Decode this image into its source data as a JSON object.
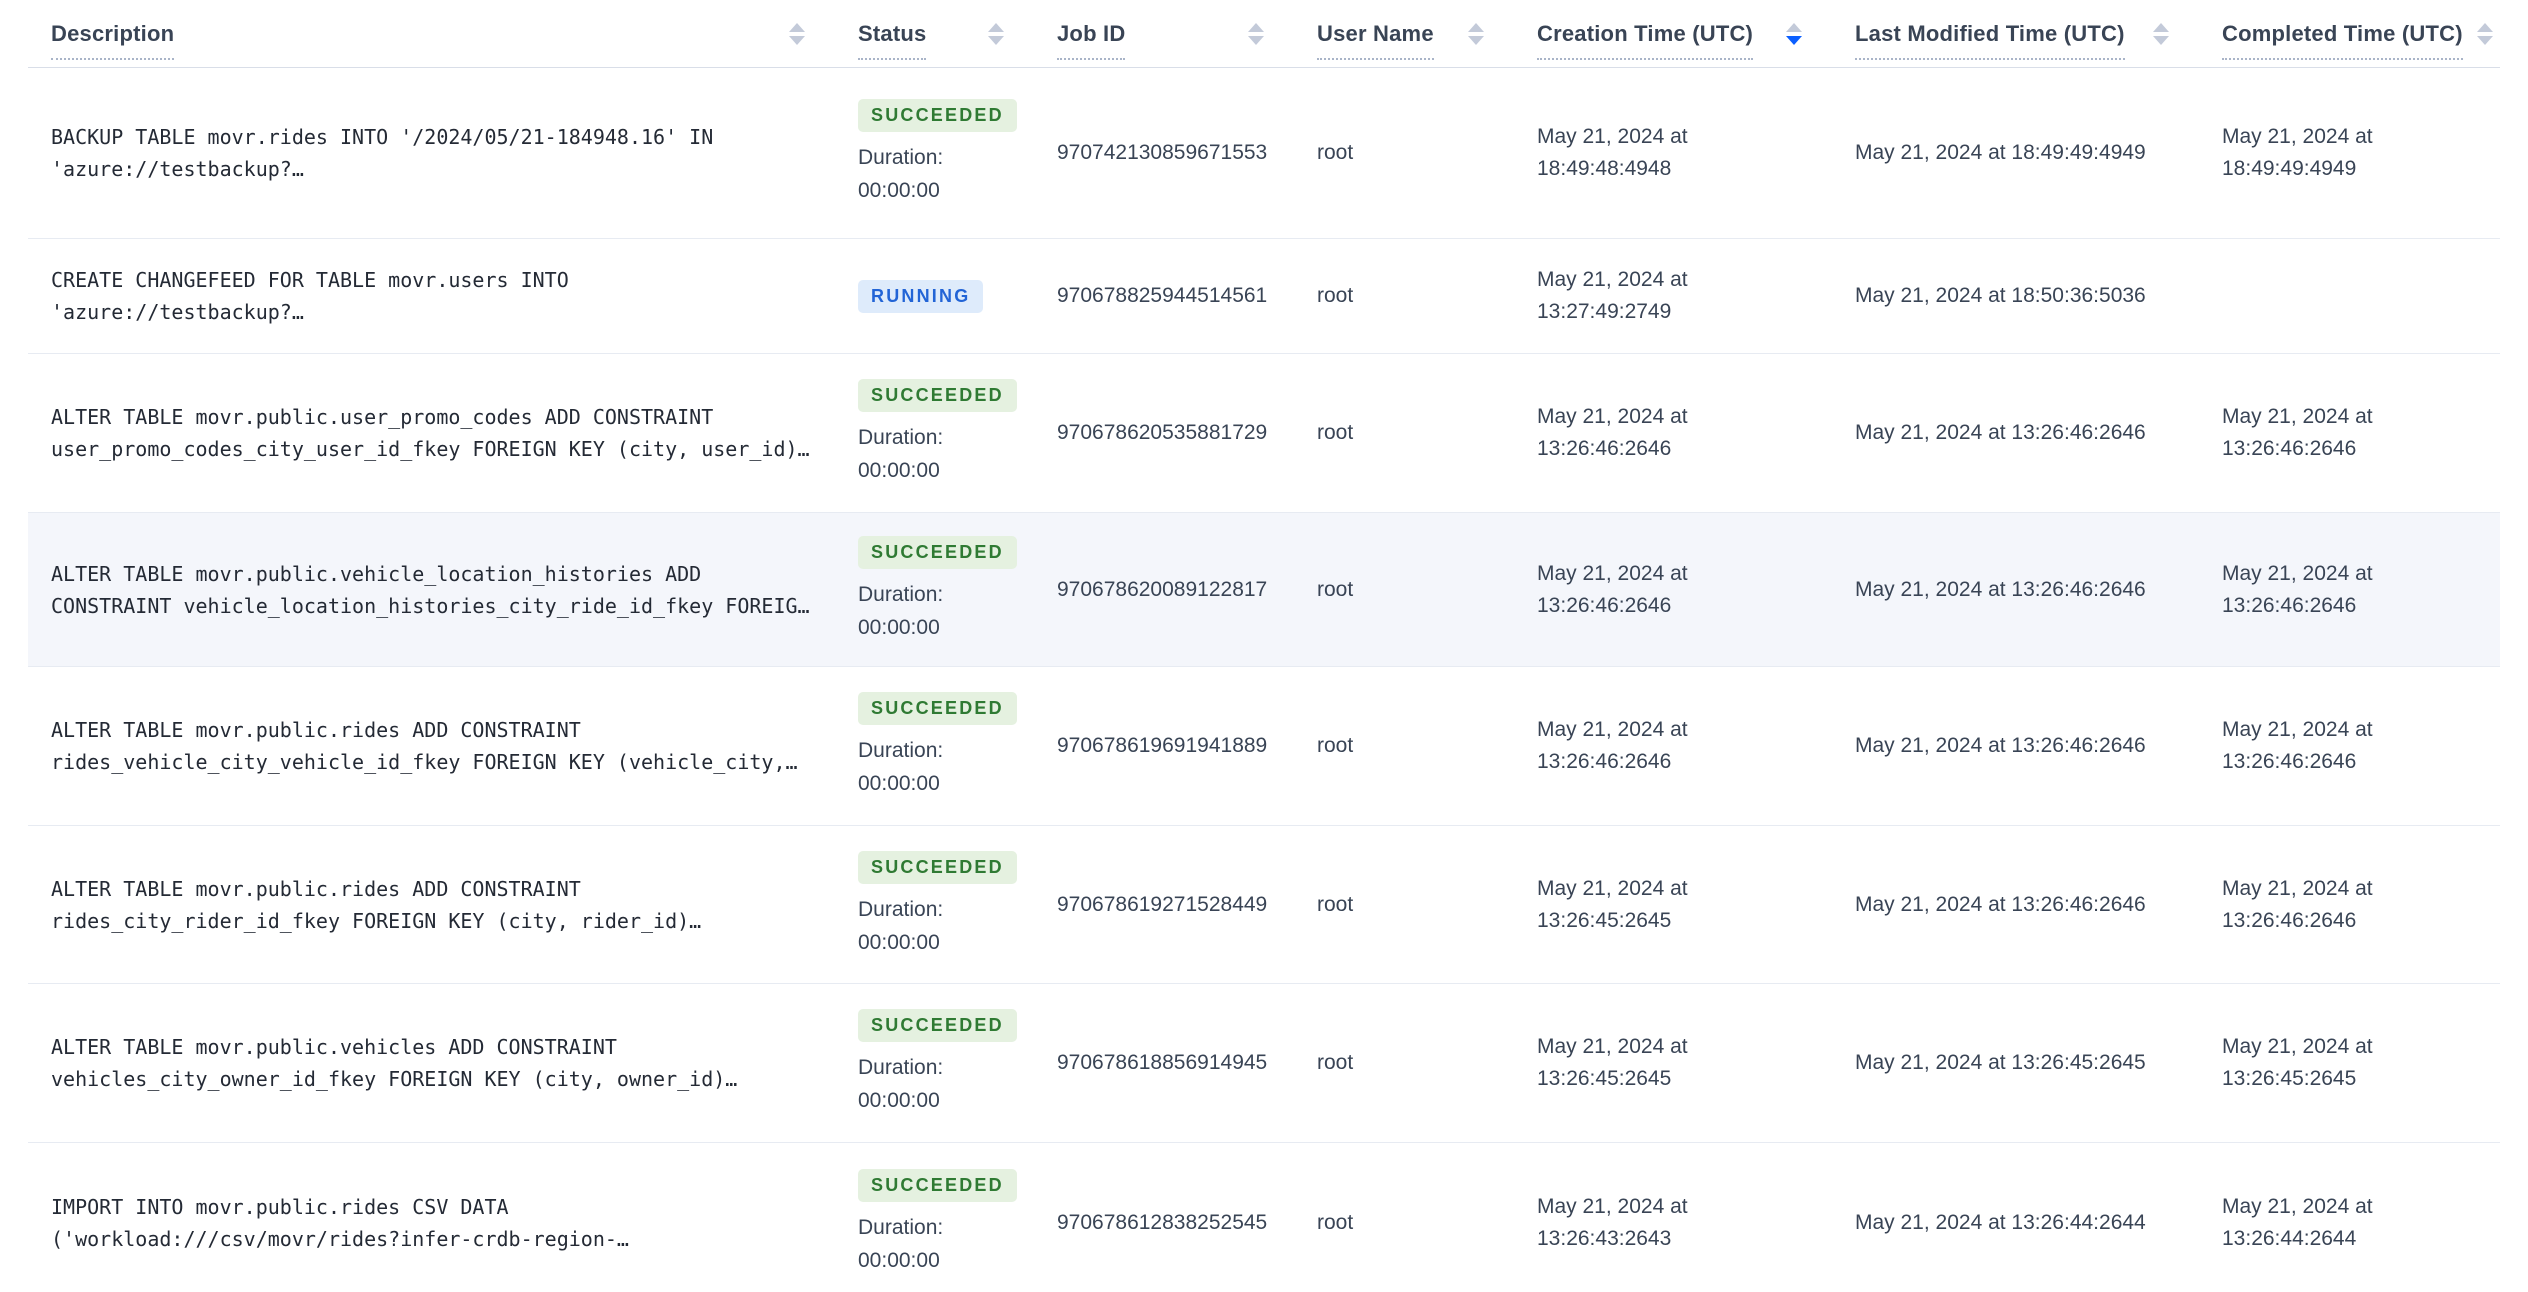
{
  "header": {
    "columns": [
      {
        "label": "Description",
        "sort": "none"
      },
      {
        "label": "Status",
        "sort": "none"
      },
      {
        "label": "Job ID",
        "sort": "none"
      },
      {
        "label": "User Name",
        "sort": "none"
      },
      {
        "label": "Creation Time (UTC)",
        "sort": "desc"
      },
      {
        "label": "Last Modified Time (UTC)",
        "sort": "none"
      },
      {
        "label": "Completed Time (UTC)",
        "sort": "none"
      }
    ]
  },
  "labels": {
    "duration": "Duration:"
  },
  "rows": [
    {
      "description_line1": "BACKUP TABLE movr.rides INTO '/2024/05/21-184948.16' IN",
      "description_line2": "'azure://testbackup?…",
      "status": "SUCCEEDED",
      "duration": "00:00:00",
      "job_id": "970742130859671553",
      "user_name": "root",
      "creation_time": "May 21, 2024 at 18:49:48:4948",
      "last_modified_time": "May 21, 2024 at 18:49:49:4949",
      "completed_time": "May 21, 2024 at 18:49:49:4949"
    },
    {
      "description_line1": "CREATE CHANGEFEED FOR TABLE movr.users INTO",
      "description_line2": "'azure://testbackup?…",
      "status": "RUNNING",
      "duration": "",
      "job_id": "970678825944514561",
      "user_name": "root",
      "creation_time": "May 21, 2024 at 13:27:49:2749",
      "last_modified_time": "May 21, 2024 at 18:50:36:5036",
      "completed_time": ""
    },
    {
      "description_line1": "ALTER TABLE movr.public.user_promo_codes ADD CONSTRAINT",
      "description_line2": "user_promo_codes_city_user_id_fkey FOREIGN KEY (city, user_id)…",
      "status": "SUCCEEDED",
      "duration": "00:00:00",
      "job_id": "970678620535881729",
      "user_name": "root",
      "creation_time": "May 21, 2024 at 13:26:46:2646",
      "last_modified_time": "May 21, 2024 at 13:26:46:2646",
      "completed_time": "May 21, 2024 at 13:26:46:2646"
    },
    {
      "description_line1": "ALTER TABLE movr.public.vehicle_location_histories ADD",
      "description_line2": "CONSTRAINT vehicle_location_histories_city_ride_id_fkey FOREIG…",
      "status": "SUCCEEDED",
      "duration": "00:00:00",
      "job_id": "970678620089122817",
      "user_name": "root",
      "creation_time": "May 21, 2024 at 13:26:46:2646",
      "last_modified_time": "May 21, 2024 at 13:26:46:2646",
      "completed_time": "May 21, 2024 at 13:26:46:2646"
    },
    {
      "description_line1": "ALTER TABLE movr.public.rides ADD CONSTRAINT",
      "description_line2": "rides_vehicle_city_vehicle_id_fkey FOREIGN KEY (vehicle_city,…",
      "status": "SUCCEEDED",
      "duration": "00:00:00",
      "job_id": "970678619691941889",
      "user_name": "root",
      "creation_time": "May 21, 2024 at 13:26:46:2646",
      "last_modified_time": "May 21, 2024 at 13:26:46:2646",
      "completed_time": "May 21, 2024 at 13:26:46:2646"
    },
    {
      "description_line1": "ALTER TABLE movr.public.rides ADD CONSTRAINT",
      "description_line2": "rides_city_rider_id_fkey FOREIGN KEY (city, rider_id)…",
      "status": "SUCCEEDED",
      "duration": "00:00:00",
      "job_id": "970678619271528449",
      "user_name": "root",
      "creation_time": "May 21, 2024 at 13:26:45:2645",
      "last_modified_time": "May 21, 2024 at 13:26:46:2646",
      "completed_time": "May 21, 2024 at 13:26:46:2646"
    },
    {
      "description_line1": "ALTER TABLE movr.public.vehicles ADD CONSTRAINT",
      "description_line2": "vehicles_city_owner_id_fkey FOREIGN KEY (city, owner_id)…",
      "status": "SUCCEEDED",
      "duration": "00:00:00",
      "job_id": "970678618856914945",
      "user_name": "root",
      "creation_time": "May 21, 2024 at 13:26:45:2645",
      "last_modified_time": "May 21, 2024 at 13:26:45:2645",
      "completed_time": "May 21, 2024 at 13:26:45:2645"
    },
    {
      "description_line1": "IMPORT INTO movr.public.rides CSV DATA",
      "description_line2": "('workload:///csv/movr/rides?infer-crdb-region-…",
      "status": "SUCCEEDED",
      "duration": "00:00:00",
      "job_id": "970678612838252545",
      "user_name": "root",
      "creation_time": "May 21, 2024 at 13:26:43:2643",
      "last_modified_time": "May 21, 2024 at 13:26:44:2644",
      "completed_time": "May 21, 2024 at 13:26:44:2644"
    }
  ],
  "colors": {
    "succeeded_text": "#2f7a33",
    "succeeded_bg": "#e5f1e0",
    "running_text": "#2264d6",
    "running_bg": "#deebfb",
    "sort_active_arrow": "#0b5fff",
    "header_text": "#394455",
    "row_highlight_bg": "#f4f6fb"
  }
}
